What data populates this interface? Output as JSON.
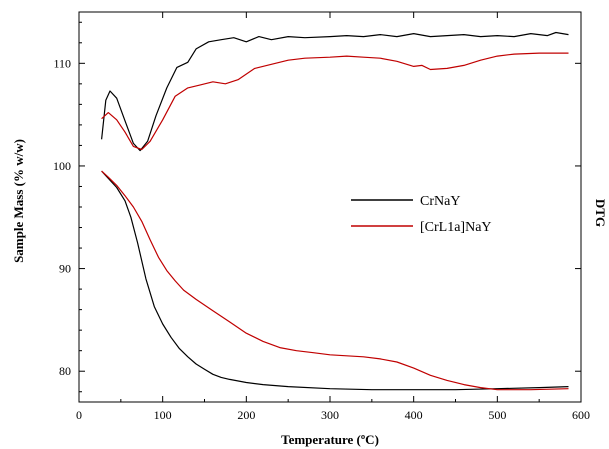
{
  "chart_data": {
    "type": "line",
    "title": "",
    "xlabel": "Temperature (ºC)",
    "ylabel": "Sample Mass (% w/w)",
    "y2label": "DTG",
    "xlim": [
      0,
      600
    ],
    "ylim": [
      77,
      115
    ],
    "x_ticks": [
      0,
      100,
      200,
      300,
      400,
      500,
      600
    ],
    "y_ticks": [
      80,
      90,
      100,
      110
    ],
    "grid": false,
    "legend_position": "center-right",
    "series": [
      {
        "name": "CrNaY",
        "color": "#000000",
        "kind": "mass",
        "points": [
          [
            27,
            99.5
          ],
          [
            35,
            98.8
          ],
          [
            45,
            97.9
          ],
          [
            55,
            96.6
          ],
          [
            62,
            95.0
          ],
          [
            70,
            92.5
          ],
          [
            80,
            89.0
          ],
          [
            90,
            86.3
          ],
          [
            100,
            84.6
          ],
          [
            110,
            83.3
          ],
          [
            120,
            82.2
          ],
          [
            130,
            81.4
          ],
          [
            140,
            80.7
          ],
          [
            150,
            80.2
          ],
          [
            160,
            79.7
          ],
          [
            170,
            79.4
          ],
          [
            180,
            79.2
          ],
          [
            200,
            78.9
          ],
          [
            220,
            78.7
          ],
          [
            250,
            78.5
          ],
          [
            300,
            78.3
          ],
          [
            350,
            78.2
          ],
          [
            400,
            78.2
          ],
          [
            450,
            78.2
          ],
          [
            500,
            78.3
          ],
          [
            550,
            78.4
          ],
          [
            585,
            78.5
          ]
        ]
      },
      {
        "name": "[CrL1a]NaY",
        "color": "#c00000",
        "kind": "mass",
        "points": [
          [
            27,
            99.5
          ],
          [
            35,
            98.9
          ],
          [
            45,
            98.1
          ],
          [
            55,
            97.1
          ],
          [
            65,
            96.0
          ],
          [
            75,
            94.6
          ],
          [
            85,
            92.8
          ],
          [
            95,
            91.1
          ],
          [
            105,
            89.8
          ],
          [
            115,
            88.8
          ],
          [
            125,
            87.9
          ],
          [
            140,
            87.0
          ],
          [
            160,
            85.9
          ],
          [
            180,
            84.8
          ],
          [
            200,
            83.7
          ],
          [
            220,
            82.9
          ],
          [
            240,
            82.3
          ],
          [
            260,
            82.0
          ],
          [
            280,
            81.8
          ],
          [
            300,
            81.6
          ],
          [
            320,
            81.5
          ],
          [
            340,
            81.4
          ],
          [
            360,
            81.2
          ],
          [
            380,
            80.9
          ],
          [
            400,
            80.3
          ],
          [
            420,
            79.6
          ],
          [
            440,
            79.1
          ],
          [
            460,
            78.7
          ],
          [
            480,
            78.4
          ],
          [
            500,
            78.2
          ],
          [
            540,
            78.2
          ],
          [
            585,
            78.3
          ]
        ]
      },
      {
        "name": "CrNaY DTG",
        "color": "#000000",
        "kind": "dtg",
        "points": [
          [
            27,
            102.6
          ],
          [
            32,
            106.4
          ],
          [
            37,
            107.3
          ],
          [
            45,
            106.6
          ],
          [
            55,
            104.4
          ],
          [
            65,
            102.2
          ],
          [
            73,
            101.5
          ],
          [
            82,
            102.4
          ],
          [
            92,
            104.9
          ],
          [
            105,
            107.6
          ],
          [
            117,
            109.6
          ],
          [
            130,
            110.1
          ],
          [
            140,
            111.4
          ],
          [
            155,
            112.1
          ],
          [
            170,
            112.3
          ],
          [
            185,
            112.5
          ],
          [
            200,
            112.1
          ],
          [
            215,
            112.6
          ],
          [
            230,
            112.3
          ],
          [
            250,
            112.6
          ],
          [
            270,
            112.5
          ],
          [
            300,
            112.6
          ],
          [
            320,
            112.7
          ],
          [
            340,
            112.6
          ],
          [
            360,
            112.8
          ],
          [
            380,
            112.6
          ],
          [
            400,
            112.9
          ],
          [
            420,
            112.6
          ],
          [
            440,
            112.7
          ],
          [
            460,
            112.8
          ],
          [
            480,
            112.6
          ],
          [
            500,
            112.7
          ],
          [
            520,
            112.6
          ],
          [
            540,
            112.9
          ],
          [
            560,
            112.7
          ],
          [
            570,
            113.0
          ],
          [
            585,
            112.8
          ]
        ]
      },
      {
        "name": "[CrL1a]NaY DTG",
        "color": "#c00000",
        "kind": "dtg",
        "points": [
          [
            27,
            104.6
          ],
          [
            35,
            105.2
          ],
          [
            45,
            104.5
          ],
          [
            55,
            103.3
          ],
          [
            65,
            101.9
          ],
          [
            75,
            101.6
          ],
          [
            85,
            102.4
          ],
          [
            100,
            104.5
          ],
          [
            115,
            106.8
          ],
          [
            130,
            107.6
          ],
          [
            145,
            107.9
          ],
          [
            160,
            108.2
          ],
          [
            175,
            108.0
          ],
          [
            190,
            108.4
          ],
          [
            210,
            109.5
          ],
          [
            230,
            109.9
          ],
          [
            250,
            110.3
          ],
          [
            270,
            110.5
          ],
          [
            300,
            110.6
          ],
          [
            320,
            110.7
          ],
          [
            340,
            110.6
          ],
          [
            360,
            110.5
          ],
          [
            380,
            110.2
          ],
          [
            400,
            109.7
          ],
          [
            410,
            109.8
          ],
          [
            420,
            109.4
          ],
          [
            440,
            109.5
          ],
          [
            460,
            109.8
          ],
          [
            480,
            110.3
          ],
          [
            500,
            110.7
          ],
          [
            520,
            110.9
          ],
          [
            550,
            111.0
          ],
          [
            585,
            111.0
          ]
        ]
      }
    ]
  }
}
